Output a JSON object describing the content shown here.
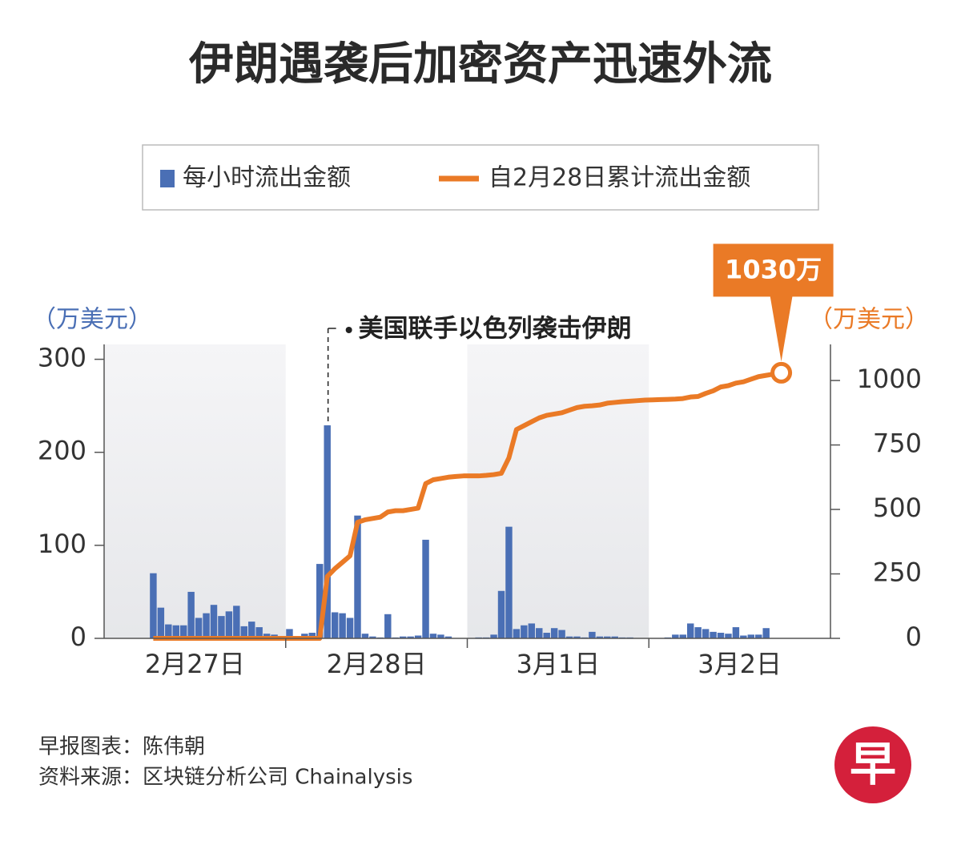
{
  "chart_data": {
    "type": "bar-line",
    "title": "伊朗遇袭后加密资产迅速外流",
    "categories": [
      null,
      null,
      null,
      null,
      null,
      null,
      null,
      null,
      null,
      null,
      null,
      null,
      "2月27日",
      null,
      null,
      null,
      null,
      null,
      null,
      null,
      null,
      null,
      null,
      null,
      null,
      null,
      null,
      null,
      null,
      null,
      null,
      null,
      null,
      null,
      null,
      null,
      "2月28日",
      null,
      null,
      null,
      null,
      null,
      null,
      null,
      null,
      null,
      null,
      null,
      null,
      null,
      null,
      null,
      null,
      null,
      null,
      null,
      null,
      null,
      null,
      null,
      "3月1日",
      null,
      null,
      null,
      null,
      null,
      null,
      null,
      null,
      null,
      null,
      null,
      null,
      null,
      null,
      null,
      null,
      null,
      null,
      null,
      null,
      null,
      null,
      null,
      "3月2日",
      null,
      null,
      null,
      null,
      null,
      null,
      null,
      null,
      null,
      null,
      null
    ],
    "series": [
      {
        "name": "每小时流出金额",
        "type": "bar",
        "color": "#4a6fb5",
        "values": [
          0,
          0,
          0,
          0,
          0,
          0,
          70,
          33,
          15,
          14,
          14,
          50,
          22,
          27,
          36,
          24,
          29,
          35,
          13,
          18,
          12,
          5,
          4,
          0,
          10,
          1,
          5,
          6,
          80,
          229,
          28,
          27,
          22,
          132,
          5,
          2,
          1,
          26,
          1,
          2,
          2,
          3,
          106,
          5,
          4,
          2,
          0,
          0,
          0,
          1,
          1,
          4,
          51,
          120,
          10,
          14,
          16,
          11,
          6,
          11,
          9,
          2,
          2,
          1,
          7,
          2,
          2,
          2,
          1,
          1,
          0,
          0,
          0,
          0,
          1,
          4,
          4,
          16,
          12,
          10,
          7,
          6,
          5,
          12,
          3,
          4,
          4,
          11,
          0,
          0,
          0,
          0,
          0,
          0,
          0,
          0
        ]
      },
      {
        "name": "自2月28日累计流出金额",
        "type": "line",
        "axis": "y2",
        "color": "#ea7a26",
        "values": [
          null,
          null,
          null,
          null,
          null,
          null,
          0,
          0,
          0,
          0,
          0,
          0,
          0,
          0,
          0,
          0,
          0,
          0,
          0,
          0,
          0,
          0,
          0,
          0,
          0,
          0,
          0,
          0,
          0,
          240,
          270,
          295,
          320,
          450,
          460,
          465,
          470,
          490,
          495,
          495,
          500,
          505,
          600,
          615,
          620,
          625,
          628,
          630,
          630,
          630,
          632,
          635,
          640,
          700,
          810,
          825,
          840,
          855,
          865,
          870,
          875,
          885,
          895,
          900,
          902,
          905,
          912,
          915,
          918,
          920,
          922,
          924,
          925,
          926,
          927,
          928,
          930,
          936,
          938,
          950,
          960,
          975,
          980,
          990,
          995,
          1005,
          1015,
          1020,
          1025,
          1030,
          null,
          null,
          null,
          null,
          null,
          null
        ],
        "value_labels": [
          null,
          null,
          null,
          null,
          null,
          null,
          null,
          null,
          null,
          null,
          null,
          null,
          null,
          null,
          null,
          null,
          null,
          null,
          null,
          null,
          null,
          null,
          null,
          null,
          null,
          null,
          null,
          null,
          null,
          null,
          null,
          null,
          null,
          null,
          null,
          null,
          null,
          null,
          null,
          null,
          null,
          null,
          null,
          null,
          null,
          null,
          null,
          null,
          null,
          null,
          null,
          null,
          null,
          null,
          null,
          null,
          null,
          null,
          null,
          null,
          null,
          null,
          null,
          null,
          null,
          null,
          null,
          null,
          null,
          null,
          null,
          null,
          null,
          null,
          null,
          null,
          null,
          null,
          null,
          null,
          null,
          null,
          null,
          null,
          null,
          null,
          null,
          null,
          null,
          "1030万",
          null,
          null,
          null,
          null,
          null,
          null
        ]
      }
    ],
    "y_label": "（万美元）",
    "y2_label": "（万美元）",
    "ylim": [
      0,
      316
    ],
    "yticks": [
      0,
      100,
      200,
      300
    ],
    "y2lim": [
      0,
      1140
    ],
    "y2ticks": [
      0,
      250,
      500,
      750,
      1000
    ],
    "annotations": [
      {
        "text": "美国联手以色列袭击伊朗"
      }
    ]
  },
  "footer": {
    "lines": [
      "早报图表：陈伟朝",
      "资料来源：区块链分析公司 Chainalysis"
    ],
    "logo": "早"
  }
}
